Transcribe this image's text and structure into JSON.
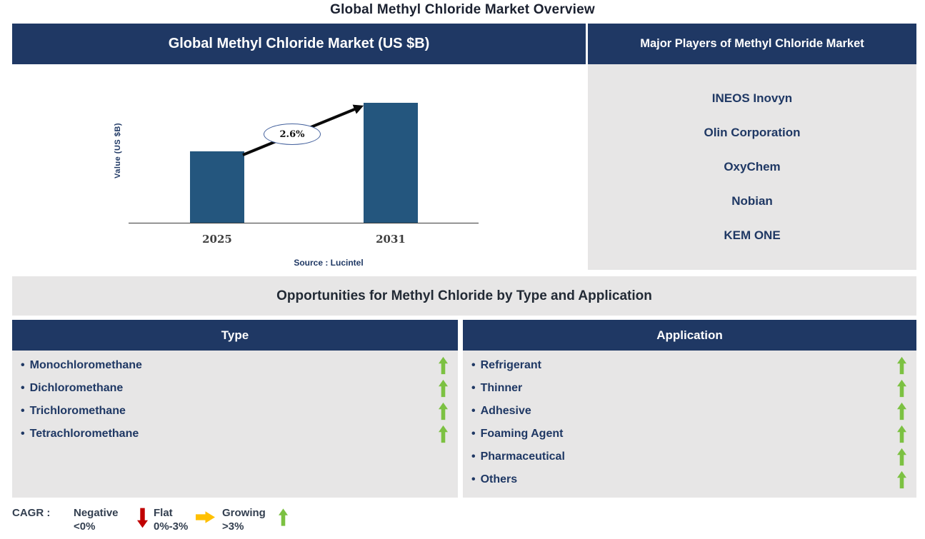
{
  "colors": {
    "navy": "#1F3864",
    "bar_blue": "#24567E",
    "panel_gray": "#E7E6E6",
    "green": "#7CC142",
    "red": "#C00000",
    "amber": "#FFC000",
    "arrow_black": "#0A0A0A"
  },
  "glyphs": {
    "bullet": "•"
  },
  "page_title": "Global Methyl Chloride Market Overview",
  "chart_data": {
    "type": "bar",
    "title": "Global Methyl Chloride Market (US $B)",
    "categories": [
      "2025",
      "2031"
    ],
    "values": [
      100,
      168
    ],
    "unit": "relative bar height, px (value axis unlabeled)",
    "ylabel": "Value (US $B)",
    "annotation": "2.6%",
    "annotation_meaning": "CAGR between 2025 and 2031",
    "source": "Source : Lucintel",
    "bar_color": "#24567E",
    "grid": "off",
    "legend": "none"
  },
  "players_panel": {
    "header": "Major Players of Methyl Chloride Market",
    "companies": [
      "INEOS Inovyn",
      "Olin Corporation",
      "OxyChem",
      "Nobian",
      "KEM ONE"
    ]
  },
  "opportunities": {
    "title": "Opportunities for Methyl Chloride by Type and Application",
    "type_column": {
      "header": "Type",
      "items": [
        {
          "label": "Monochloromethane",
          "trend": "growing"
        },
        {
          "label": "Dichloromethane",
          "trend": "growing"
        },
        {
          "label": "Trichloromethane",
          "trend": "growing"
        },
        {
          "label": "Tetrachloromethane",
          "trend": "growing"
        }
      ]
    },
    "application_column": {
      "header": "Application",
      "items": [
        {
          "label": "Refrigerant",
          "trend": "growing"
        },
        {
          "label": "Thinner",
          "trend": "growing"
        },
        {
          "label": "Adhesive",
          "trend": "growing"
        },
        {
          "label": "Foaming Agent",
          "trend": "growing"
        },
        {
          "label": "Pharmaceutical",
          "trend": "growing"
        },
        {
          "label": "Others",
          "trend": "growing"
        }
      ]
    }
  },
  "legend": {
    "label": "CAGR :",
    "items": [
      {
        "name": "Negative",
        "range": "<0%",
        "arrow": "down",
        "color": "#C00000"
      },
      {
        "name": "Flat",
        "range": "0%-3%",
        "arrow": "right",
        "color": "#FFC000"
      },
      {
        "name": "Growing",
        "range": ">3%",
        "arrow": "up",
        "color": "#7CC142"
      }
    ]
  }
}
